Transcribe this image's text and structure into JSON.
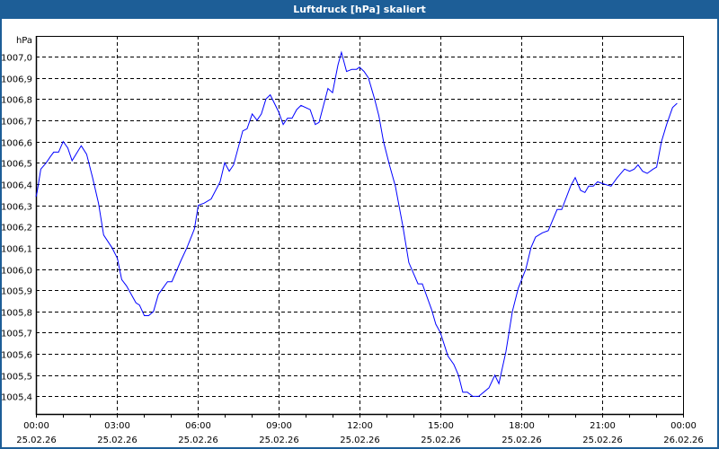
{
  "window": {
    "title": "Luftdruck [hPa] skaliert",
    "border_color": "#1d5e97"
  },
  "chart_data": {
    "type": "line",
    "title": "Luftdruck [hPa] skaliert",
    "ylabel": "hPa",
    "xlabel": "",
    "ylim": [
      1005.32,
      1007.1
    ],
    "xlim_hours": [
      0,
      24
    ],
    "y_ticks": [
      "1005,4",
      "1005,5",
      "1005,6",
      "1005,7",
      "1005,8",
      "1005,9",
      "1006,0",
      "1006,1",
      "1006,2",
      "1006,3",
      "1006,4",
      "1006,5",
      "1006,6",
      "1006,7",
      "1006,8",
      "1006,9",
      "1007,0"
    ],
    "y_tick_values": [
      1005.4,
      1005.5,
      1005.6,
      1005.7,
      1005.8,
      1005.9,
      1006.0,
      1006.1,
      1006.2,
      1006.3,
      1006.4,
      1006.5,
      1006.6,
      1006.7,
      1006.8,
      1006.9,
      1007.0
    ],
    "x_ticks": [
      {
        "hour": 0,
        "time": "00:00",
        "date": "25.02.26"
      },
      {
        "hour": 3,
        "time": "03:00",
        "date": "25.02.26"
      },
      {
        "hour": 6,
        "time": "06:00",
        "date": "25.02.26"
      },
      {
        "hour": 9,
        "time": "09:00",
        "date": "25.02.26"
      },
      {
        "hour": 12,
        "time": "12:00",
        "date": "25.02.26"
      },
      {
        "hour": 15,
        "time": "15:00",
        "date": "25.02.26"
      },
      {
        "hour": 18,
        "time": "18:00",
        "date": "25.02.26"
      },
      {
        "hour": 21,
        "time": "21:00",
        "date": "25.02.26"
      },
      {
        "hour": 24,
        "time": "00:00",
        "date": "26.02.26"
      }
    ],
    "grid": true,
    "line_color": "#0000ff",
    "series": [
      {
        "name": "Luftdruck",
        "points": [
          [
            0,
            1006.34
          ],
          [
            0.04,
            1006.36
          ],
          [
            0.18,
            1006.47
          ],
          [
            0.38,
            1006.5
          ],
          [
            0.54,
            1006.53
          ],
          [
            0.66,
            1006.55
          ],
          [
            0.84,
            1006.55
          ],
          [
            1.01,
            1006.6
          ],
          [
            1.18,
            1006.57
          ],
          [
            1.34,
            1006.51
          ],
          [
            1.68,
            1006.58
          ],
          [
            1.88,
            1006.54
          ],
          [
            2.1,
            1006.43
          ],
          [
            2.32,
            1006.31
          ],
          [
            2.51,
            1006.16
          ],
          [
            2.82,
            1006.1
          ],
          [
            3.02,
            1006.05
          ],
          [
            3.18,
            1005.95
          ],
          [
            3.36,
            1005.92
          ],
          [
            3.71,
            1005.84
          ],
          [
            3.84,
            1005.83
          ],
          [
            4.02,
            1005.78
          ],
          [
            4.18,
            1005.78
          ],
          [
            4.36,
            1005.8
          ],
          [
            4.54,
            1005.88
          ],
          [
            4.88,
            1005.94
          ],
          [
            5.04,
            1005.94
          ],
          [
            5.38,
            1006.04
          ],
          [
            5.6,
            1006.1
          ],
          [
            5.82,
            1006.17
          ],
          [
            5.88,
            1006.19
          ],
          [
            6.02,
            1006.3
          ],
          [
            6.24,
            1006.31
          ],
          [
            6.5,
            1006.33
          ],
          [
            6.83,
            1006.41
          ],
          [
            7.0,
            1006.5
          ],
          [
            7.17,
            1006.46
          ],
          [
            7.33,
            1006.49
          ],
          [
            7.67,
            1006.65
          ],
          [
            7.83,
            1006.66
          ],
          [
            8.02,
            1006.73
          ],
          [
            8.2,
            1006.7
          ],
          [
            8.36,
            1006.73
          ],
          [
            8.53,
            1006.8
          ],
          [
            8.69,
            1006.82
          ],
          [
            9.0,
            1006.74
          ],
          [
            9.17,
            1006.68
          ],
          [
            9.33,
            1006.71
          ],
          [
            9.5,
            1006.71
          ],
          [
            9.67,
            1006.75
          ],
          [
            9.83,
            1006.77
          ],
          [
            10.17,
            1006.75
          ],
          [
            10.36,
            1006.68
          ],
          [
            10.5,
            1006.69
          ],
          [
            10.83,
            1006.85
          ],
          [
            11.0,
            1006.83
          ],
          [
            11.2,
            1006.96
          ],
          [
            11.33,
            1007.02
          ],
          [
            11.52,
            1006.93
          ],
          [
            11.72,
            1006.94
          ],
          [
            11.89,
            1006.94
          ],
          [
            12.0,
            1006.95
          ],
          [
            12.17,
            1006.93
          ],
          [
            12.33,
            1006.9
          ],
          [
            12.56,
            1006.8
          ],
          [
            12.72,
            1006.72
          ],
          [
            12.89,
            1006.6
          ],
          [
            13.11,
            1006.49
          ],
          [
            13.33,
            1006.39
          ],
          [
            13.61,
            1006.2
          ],
          [
            13.83,
            1006.03
          ],
          [
            14.17,
            1005.93
          ],
          [
            14.33,
            1005.93
          ],
          [
            14.67,
            1005.81
          ],
          [
            14.83,
            1005.74
          ],
          [
            15.0,
            1005.7
          ],
          [
            15.28,
            1005.59
          ],
          [
            15.5,
            1005.55
          ],
          [
            15.67,
            1005.5
          ],
          [
            15.83,
            1005.42
          ],
          [
            16.0,
            1005.42
          ],
          [
            16.2,
            1005.4
          ],
          [
            16.42,
            1005.4
          ],
          [
            16.8,
            1005.44
          ],
          [
            17.02,
            1005.5
          ],
          [
            17.17,
            1005.46
          ],
          [
            17.43,
            1005.61
          ],
          [
            17.67,
            1005.8
          ],
          [
            17.89,
            1005.91
          ],
          [
            18.17,
            1006.0
          ],
          [
            18.36,
            1006.1
          ],
          [
            18.53,
            1006.15
          ],
          [
            18.78,
            1006.17
          ],
          [
            19.0,
            1006.18
          ],
          [
            19.33,
            1006.28
          ],
          [
            19.5,
            1006.28
          ],
          [
            19.83,
            1006.39
          ],
          [
            20.0,
            1006.43
          ],
          [
            20.2,
            1006.37
          ],
          [
            20.36,
            1006.36
          ],
          [
            20.5,
            1006.39
          ],
          [
            20.67,
            1006.39
          ],
          [
            20.83,
            1006.41
          ],
          [
            21.06,
            1006.4
          ],
          [
            21.33,
            1006.39
          ],
          [
            21.56,
            1006.43
          ],
          [
            21.83,
            1006.47
          ],
          [
            22.02,
            1006.46
          ],
          [
            22.19,
            1006.47
          ],
          [
            22.33,
            1006.49
          ],
          [
            22.5,
            1006.46
          ],
          [
            22.67,
            1006.45
          ],
          [
            22.89,
            1006.47
          ],
          [
            23.02,
            1006.48
          ],
          [
            23.2,
            1006.6
          ],
          [
            23.39,
            1006.68
          ],
          [
            23.61,
            1006.76
          ],
          [
            23.78,
            1006.78
          ]
        ]
      }
    ]
  }
}
